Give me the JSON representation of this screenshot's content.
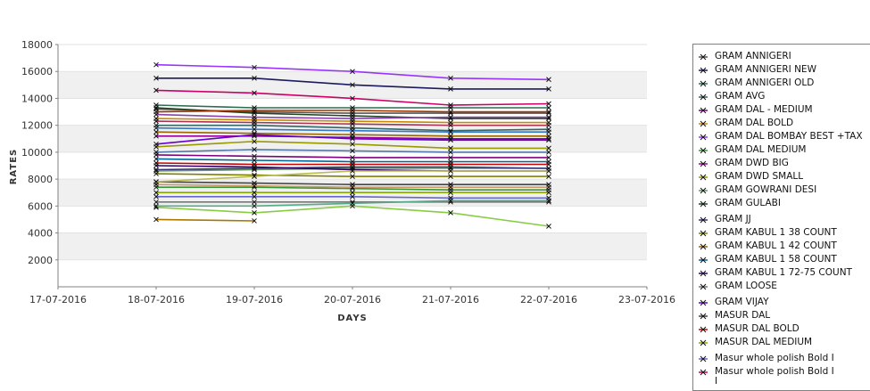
{
  "chart_data": {
    "type": "line",
    "xlabel": "DAYS",
    "ylabel": "RATES",
    "ylim": [
      0,
      18000
    ],
    "yticks": [
      2000,
      4000,
      6000,
      8000,
      10000,
      12000,
      14000,
      16000,
      18000
    ],
    "xlim": [
      "17-07-2016",
      "23-07-2016"
    ],
    "x": [
      "17-07-2016",
      "18-07-2016",
      "19-07-2016",
      "20-07-2016",
      "21-07-2016",
      "22-07-2016",
      "23-07-2016"
    ],
    "grid": "horizontal alternating bands",
    "legend_position": "right",
    "series": [
      {
        "name": "GRAM ANNIGERI",
        "color": "#555555",
        "points": [
          [
            "18-07-2016",
            13200
          ],
          [
            "19-07-2016",
            13000
          ],
          [
            "20-07-2016",
            12900
          ],
          [
            "21-07-2016",
            12900
          ],
          [
            "22-07-2016",
            12900
          ]
        ]
      },
      {
        "name": "GRAM ANNIGERI NEW",
        "color": "#1a1a5e",
        "points": [
          [
            "18-07-2016",
            15500
          ],
          [
            "19-07-2016",
            15500
          ],
          [
            "20-07-2016",
            15000
          ],
          [
            "21-07-2016",
            14700
          ],
          [
            "22-07-2016",
            14700
          ]
        ]
      },
      {
        "name": "GRAM ANNIGERI OLD",
        "color": "#2e6b4f",
        "points": [
          [
            "18-07-2016",
            13500
          ],
          [
            "19-07-2016",
            13300
          ],
          [
            "20-07-2016",
            13300
          ],
          [
            "21-07-2016",
            13300
          ],
          [
            "22-07-2016",
            13300
          ]
        ]
      },
      {
        "name": "GRAM AVG",
        "color": "#336666",
        "points": [
          [
            "18-07-2016",
            12000
          ],
          [
            "19-07-2016",
            12000
          ],
          [
            "20-07-2016",
            11800
          ],
          [
            "21-07-2016",
            11600
          ],
          [
            "22-07-2016",
            11700
          ]
        ]
      },
      {
        "name": "GRAM DAL - MEDIUM",
        "color": "#800080",
        "points": [
          [
            "18-07-2016",
            9800
          ],
          [
            "19-07-2016",
            9700
          ],
          [
            "20-07-2016",
            9600
          ],
          [
            "21-07-2016",
            9600
          ],
          [
            "22-07-2016",
            9600
          ]
        ]
      },
      {
        "name": "GRAM DAL BOLD",
        "color": "#cc8800",
        "points": [
          [
            "18-07-2016",
            12500
          ],
          [
            "19-07-2016",
            12400
          ],
          [
            "20-07-2016",
            12300
          ],
          [
            "21-07-2016",
            12200
          ],
          [
            "22-07-2016",
            12200
          ]
        ]
      },
      {
        "name": "GRAM DAL BOMBAY BEST +TAX",
        "color": "#9933ff",
        "points": [
          [
            "18-07-2016",
            16500
          ],
          [
            "19-07-2016",
            16300
          ],
          [
            "20-07-2016",
            16000
          ],
          [
            "21-07-2016",
            15500
          ],
          [
            "22-07-2016",
            15400
          ]
        ]
      },
      {
        "name": "GRAM DAL MEDIUM",
        "color": "#339933",
        "points": [
          [
            "18-07-2016",
            7400
          ],
          [
            "19-07-2016",
            7400
          ],
          [
            "20-07-2016",
            7300
          ],
          [
            "21-07-2016",
            7200
          ],
          [
            "22-07-2016",
            7200
          ]
        ]
      },
      {
        "name": "GRAM DWD BIG",
        "color": "#990099",
        "points": [
          [
            "18-07-2016",
            11200
          ],
          [
            "19-07-2016",
            11200
          ],
          [
            "20-07-2016",
            11100
          ],
          [
            "21-07-2016",
            11000
          ],
          [
            "22-07-2016",
            11000
          ]
        ]
      },
      {
        "name": "GRAM DWD SMALL",
        "color": "#999900",
        "points": [
          [
            "18-07-2016",
            10400
          ],
          [
            "19-07-2016",
            10800
          ],
          [
            "20-07-2016",
            10600
          ],
          [
            "21-07-2016",
            10300
          ],
          [
            "22-07-2016",
            10300
          ]
        ]
      },
      {
        "name": "GRAM GOWRANI DESI",
        "color": "#669966",
        "points": [
          [
            "18-07-2016",
            8600
          ],
          [
            "19-07-2016",
            8700
          ],
          [
            "20-07-2016",
            8800
          ],
          [
            "21-07-2016",
            8800
          ],
          [
            "22-07-2016",
            8800
          ]
        ]
      },
      {
        "name": "GRAM GULABI",
        "color": "#224422",
        "points": [
          [
            "18-07-2016",
            13300
          ],
          [
            "19-07-2016",
            12900
          ],
          [
            "20-07-2016",
            12700
          ],
          [
            "21-07-2016",
            12500
          ],
          [
            "22-07-2016",
            12500
          ]
        ]
      },
      {
        "name": "GRAM JJ",
        "color": "#333377",
        "points": [
          [
            "18-07-2016",
            8700
          ],
          [
            "19-07-2016",
            8800
          ],
          [
            "20-07-2016",
            8900
          ],
          [
            "21-07-2016",
            8900
          ],
          [
            "22-07-2016",
            8800
          ]
        ]
      },
      {
        "name": "GRAM KABUL 1 38 COUNT",
        "color": "#808000",
        "points": [
          [
            "18-07-2016",
            8400
          ],
          [
            "19-07-2016",
            8300
          ],
          [
            "20-07-2016",
            8200
          ],
          [
            "21-07-2016",
            8200
          ],
          [
            "22-07-2016",
            8200
          ]
        ]
      },
      {
        "name": "GRAM KABUL 1 42 COUNT",
        "color": "#996600",
        "points": [
          [
            "18-07-2016",
            11500
          ],
          [
            "19-07-2016",
            11400
          ],
          [
            "20-07-2016",
            11300
          ],
          [
            "21-07-2016",
            11200
          ],
          [
            "22-07-2016",
            11200
          ]
        ]
      },
      {
        "name": "GRAM KABUL 1 58 COUNT",
        "color": "#006699",
        "points": [
          [
            "18-07-2016",
            9500
          ],
          [
            "19-07-2016",
            9400
          ],
          [
            "20-07-2016",
            9300
          ],
          [
            "21-07-2016",
            9300
          ],
          [
            "22-07-2016",
            9300
          ]
        ]
      },
      {
        "name": "GRAM KABUL 1 72-75 COUNT",
        "color": "#330066",
        "points": [
          [
            "18-07-2016",
            9000
          ],
          [
            "19-07-2016",
            8900
          ],
          [
            "20-07-2016",
            8700
          ],
          [
            "21-07-2016",
            8600
          ],
          [
            "22-07-2016",
            8600
          ]
        ]
      },
      {
        "name": "GRAM LOOSE",
        "color": "#777777",
        "points": [
          [
            "18-07-2016",
            6300
          ],
          [
            "19-07-2016",
            6300
          ],
          [
            "20-07-2016",
            6300
          ],
          [
            "21-07-2016",
            6300
          ],
          [
            "22-07-2016",
            6300
          ]
        ]
      },
      {
        "name": "GRAM VIJAY",
        "color": "#6600cc",
        "points": [
          [
            "18-07-2016",
            10600
          ],
          [
            "19-07-2016",
            11300
          ],
          [
            "20-07-2016",
            11000
          ],
          [
            "21-07-2016",
            10900
          ],
          [
            "22-07-2016",
            10900
          ]
        ]
      },
      {
        "name": "MASUR DAL",
        "color": "#444444",
        "points": [
          [
            "18-07-2016",
            7800
          ],
          [
            "19-07-2016",
            7700
          ],
          [
            "20-07-2016",
            7600
          ],
          [
            "21-07-2016",
            7600
          ],
          [
            "22-07-2016",
            7600
          ]
        ]
      },
      {
        "name": "MASUR DAL BOLD",
        "color": "#cc0000",
        "points": [
          [
            "18-07-2016",
            9200
          ],
          [
            "19-07-2016",
            9100
          ],
          [
            "20-07-2016",
            9100
          ],
          [
            "21-07-2016",
            9100
          ],
          [
            "22-07-2016",
            9100
          ]
        ]
      },
      {
        "name": "MASUR DAL MEDIUM",
        "color": "#88aa00",
        "points": [
          [
            "18-07-2016",
            7000
          ],
          [
            "19-07-2016",
            7000
          ],
          [
            "20-07-2016",
            7000
          ],
          [
            "21-07-2016",
            7000
          ],
          [
            "22-07-2016",
            7000
          ]
        ]
      },
      {
        "name": "Masur whole polish Bold I",
        "color": "#6666cc",
        "points": [
          [
            "18-07-2016",
            6700
          ],
          [
            "19-07-2016",
            6700
          ],
          [
            "20-07-2016",
            6700
          ],
          [
            "21-07-2016",
            6600
          ],
          [
            "22-07-2016",
            6600
          ]
        ]
      },
      {
        "name": "Masur whole polish Bold I\nI",
        "color": "#cc0066",
        "points": [
          [
            "18-07-2016",
            14600
          ],
          [
            "19-07-2016",
            14400
          ],
          [
            "20-07-2016",
            14000
          ],
          [
            "21-07-2016",
            13500
          ],
          [
            "22-07-2016",
            13600
          ]
        ]
      },
      {
        "name": "",
        "color": "#88cc44",
        "points": [
          [
            "18-07-2016",
            5900
          ],
          [
            "19-07-2016",
            5500
          ],
          [
            "20-07-2016",
            6000
          ],
          [
            "21-07-2016",
            5500
          ],
          [
            "22-07-2016",
            4500
          ]
        ]
      },
      {
        "name": "",
        "color": "#aa7700",
        "points": [
          [
            "18-07-2016",
            5000
          ],
          [
            "19-07-2016",
            4900
          ]
        ]
      },
      {
        "name": "",
        "color": "#5577aa",
        "points": [
          [
            "18-07-2016",
            10000
          ],
          [
            "19-07-2016",
            10200
          ],
          [
            "20-07-2016",
            10100
          ],
          [
            "21-07-2016",
            10000
          ],
          [
            "22-07-2016",
            10000
          ]
        ]
      },
      {
        "name": "",
        "color": "#8844aa",
        "points": [
          [
            "18-07-2016",
            12800
          ],
          [
            "19-07-2016",
            12600
          ],
          [
            "20-07-2016",
            12500
          ],
          [
            "21-07-2016",
            12600
          ],
          [
            "22-07-2016",
            12600
          ]
        ]
      },
      {
        "name": "",
        "color": "#cc9966",
        "points": [
          [
            "18-07-2016",
            7600
          ],
          [
            "19-07-2016",
            7500
          ],
          [
            "20-07-2016",
            7400
          ],
          [
            "21-07-2016",
            7400
          ],
          [
            "22-07-2016",
            7400
          ]
        ]
      },
      {
        "name": "",
        "color": "#bbbb55",
        "points": [
          [
            "18-07-2016",
            7800
          ],
          [
            "19-07-2016",
            8200
          ],
          [
            "20-07-2016",
            8600
          ],
          [
            "21-07-2016",
            8600
          ],
          [
            "22-07-2016",
            8600
          ]
        ]
      },
      {
        "name": "",
        "color": "#55aa88",
        "points": [
          [
            "18-07-2016",
            6000
          ],
          [
            "19-07-2016",
            6000
          ],
          [
            "20-07-2016",
            6200
          ],
          [
            "21-07-2016",
            6400
          ],
          [
            "22-07-2016",
            6400
          ]
        ]
      },
      {
        "name": "",
        "color": "#aa3355",
        "points": [
          [
            "18-07-2016",
            12300
          ],
          [
            "19-07-2016",
            12200
          ],
          [
            "20-07-2016",
            12100
          ],
          [
            "21-07-2016",
            12000
          ],
          [
            "22-07-2016",
            12000
          ]
        ]
      },
      {
        "name": "",
        "color": "#3377cc",
        "points": [
          [
            "18-07-2016",
            11800
          ],
          [
            "19-07-2016",
            11700
          ],
          [
            "20-07-2016",
            11600
          ],
          [
            "21-07-2016",
            11500
          ],
          [
            "22-07-2016",
            11500
          ]
        ]
      },
      {
        "name": "",
        "color": "#993300",
        "points": [
          [
            "18-07-2016",
            13000
          ],
          [
            "19-07-2016",
            13100
          ],
          [
            "20-07-2016",
            13100
          ],
          [
            "21-07-2016",
            13000
          ],
          [
            "22-07-2016",
            13000
          ]
        ]
      }
    ]
  }
}
